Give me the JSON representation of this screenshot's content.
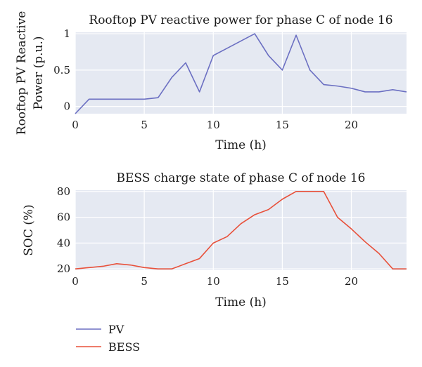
{
  "chart_data": [
    {
      "type": "line",
      "title": "Rooftop PV reactive power for phase C of node 16",
      "xlabel": "Time (h)",
      "ylabel_lines": [
        "Rooftop PV Reactive",
        "Power (p.u.)"
      ],
      "xlim": [
        0,
        24
      ],
      "ylim": [
        -0.1,
        1.02
      ],
      "xticks": [
        0,
        5,
        10,
        15,
        20
      ],
      "xtick_labels": [
        "0",
        "5",
        "10",
        "15",
        "20"
      ],
      "yticks": [
        0,
        0.5,
        1
      ],
      "ytick_labels": [
        "0",
        "0.5",
        "1"
      ],
      "grid": true,
      "series": [
        {
          "name": "PV",
          "color": "#6b6fc2",
          "x": [
            0,
            1,
            2,
            3,
            4,
            5,
            6,
            7,
            8,
            9,
            10,
            11,
            12,
            13,
            14,
            15,
            16,
            17,
            18,
            19,
            20,
            21,
            22,
            23,
            24
          ],
          "y": [
            -0.1,
            0.1,
            0.1,
            0.1,
            0.1,
            0.1,
            0.12,
            0.4,
            0.6,
            0.2,
            0.7,
            0.8,
            0.9,
            1.0,
            0.7,
            0.5,
            0.98,
            0.5,
            0.3,
            0.28,
            0.25,
            0.2,
            0.2,
            0.23,
            0.2
          ]
        }
      ]
    },
    {
      "type": "line",
      "title": "BESS charge state of phase C of node 16",
      "xlabel": "Time (h)",
      "ylabel": "SOC (%)",
      "xlim": [
        0,
        24
      ],
      "ylim": [
        19,
        81
      ],
      "xticks": [
        0,
        5,
        10,
        15,
        20
      ],
      "xtick_labels": [
        "0",
        "5",
        "10",
        "15",
        "20"
      ],
      "yticks": [
        20,
        40,
        60,
        80
      ],
      "ytick_labels": [
        "20",
        "40",
        "60",
        "80"
      ],
      "grid": true,
      "series": [
        {
          "name": "BESS",
          "color": "#e8503a",
          "x": [
            0,
            1,
            2,
            3,
            4,
            5,
            6,
            7,
            8,
            9,
            10,
            11,
            12,
            13,
            14,
            15,
            16,
            17,
            18,
            19,
            20,
            21,
            22,
            23,
            24
          ],
          "y": [
            20,
            21,
            22,
            24,
            23,
            21,
            20,
            20,
            24,
            28,
            40,
            45,
            55,
            62,
            66,
            74,
            80,
            80,
            80,
            60,
            51,
            41,
            32,
            20,
            20
          ]
        }
      ]
    }
  ],
  "legend": {
    "placement": "bottom-left",
    "items": [
      {
        "label": "PV",
        "color": "#6b6fc2"
      },
      {
        "label": "BESS",
        "color": "#e8503a"
      }
    ]
  }
}
